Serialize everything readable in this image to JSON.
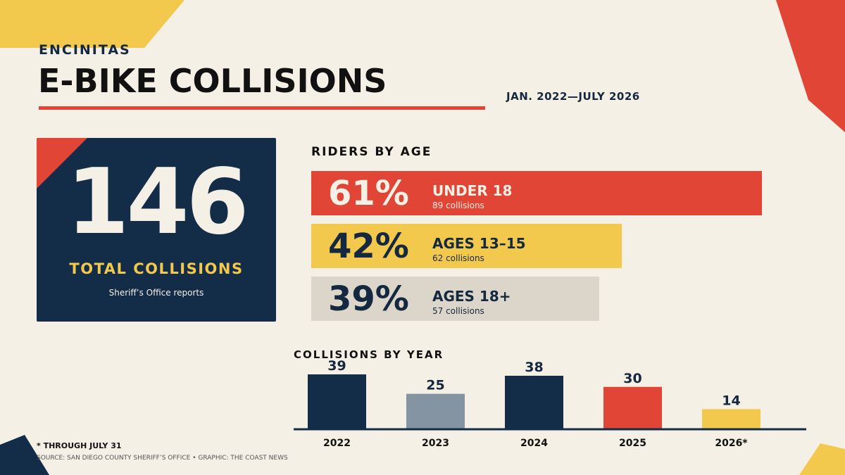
{
  "header": {
    "kicker": "ENCINITAS",
    "title": "E-BIKE COLLISIONS",
    "date_range": "JAN. 2022—JULY 2026"
  },
  "total": {
    "number": "146",
    "label": "TOTAL COLLISIONS",
    "sublabel": "Sheriff’s Office reports"
  },
  "riders_by_age": {
    "heading": "RIDERS BY AGE",
    "items": [
      {
        "pct": "61%",
        "label": "UNDER 18",
        "count": "89 collisions",
        "value": 61,
        "color": "#e04535",
        "text_color": "#f5f0e6",
        "count_color": "#f5f0e6"
      },
      {
        "pct": "42%",
        "label": "AGES 13–15",
        "count": "62 collisions",
        "value": 42,
        "color": "#f2c94c",
        "text_color": "#14283f",
        "count_color": "#14283f"
      },
      {
        "pct": "39%",
        "label": "AGES 18+",
        "count": "57 collisions",
        "value": 39,
        "color": "#dcd5c9",
        "text_color": "#14283f",
        "count_color": "#14283f"
      }
    ]
  },
  "chart_data": {
    "type": "bar",
    "title": "COLLISIONS BY YEAR",
    "categories": [
      "2022",
      "2023",
      "2024",
      "2025",
      "2026*"
    ],
    "values": [
      39,
      25,
      38,
      30,
      14
    ],
    "colors": [
      "#132c48",
      "#8494a2",
      "#132c48",
      "#e04535",
      "#f2c94c"
    ],
    "ylim": [
      0,
      39
    ]
  },
  "footer": {
    "footnote": "* THROUGH JULY 31",
    "source": "SOURCE: SAN DIEGO COUNTY SHERIFF’S OFFICE • GRAPHIC: THE COAST NEWS"
  },
  "colors": {
    "background": "#f5f0e6",
    "navy": "#132c48",
    "red": "#e04535",
    "yellow": "#f2c94c"
  }
}
